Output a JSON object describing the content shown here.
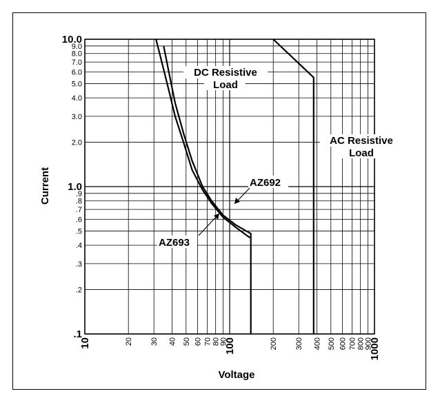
{
  "chart_data": {
    "type": "line",
    "xlabel": "Voltage",
    "ylabel": "Current",
    "xscale": "log",
    "yscale": "log",
    "xlim": [
      10,
      1000
    ],
    "ylim": [
      0.1,
      10
    ],
    "grid": true,
    "x_ticks": [
      {
        "value": 10,
        "label": "10",
        "major": true
      },
      {
        "value": 20,
        "label": "20"
      },
      {
        "value": 30,
        "label": "30"
      },
      {
        "value": 40,
        "label": "40"
      },
      {
        "value": 50,
        "label": "50"
      },
      {
        "value": 60,
        "label": "60"
      },
      {
        "value": 70,
        "label": "70"
      },
      {
        "value": 80,
        "label": "80"
      },
      {
        "value": 90,
        "label": "90"
      },
      {
        "value": 100,
        "label": "100",
        "major": true
      },
      {
        "value": 200,
        "label": "200"
      },
      {
        "value": 300,
        "label": "300"
      },
      {
        "value": 400,
        "label": "400"
      },
      {
        "value": 500,
        "label": "500"
      },
      {
        "value": 600,
        "label": "600"
      },
      {
        "value": 700,
        "label": "700"
      },
      {
        "value": 800,
        "label": "800"
      },
      {
        "value": 900,
        "label": "900"
      },
      {
        "value": 1000,
        "label": "1000",
        "major": true
      }
    ],
    "y_ticks": [
      {
        "value": 0.1,
        "label": ".1",
        "major": true
      },
      {
        "value": 0.2,
        "label": ".2"
      },
      {
        "value": 0.3,
        "label": ".3"
      },
      {
        "value": 0.4,
        "label": ".4"
      },
      {
        "value": 0.5,
        "label": ".5"
      },
      {
        "value": 0.6,
        "label": ".6"
      },
      {
        "value": 0.7,
        "label": ".7"
      },
      {
        "value": 0.8,
        "label": ".8"
      },
      {
        "value": 0.9,
        "label": ".9"
      },
      {
        "value": 1.0,
        "label": "1.0",
        "major": true
      },
      {
        "value": 2.0,
        "label": "2.0"
      },
      {
        "value": 3.0,
        "label": "3.0"
      },
      {
        "value": 4.0,
        "label": "4.0"
      },
      {
        "value": 5.0,
        "label": "5.0"
      },
      {
        "value": 6.0,
        "label": "6.0"
      },
      {
        "value": 7.0,
        "label": "7.0"
      },
      {
        "value": 8.0,
        "label": "8.0"
      },
      {
        "value": 9.0,
        "label": "9.0"
      },
      {
        "value": 10.0,
        "label": "10.0",
        "major": true
      }
    ],
    "series": [
      {
        "name": "AZ692",
        "points": [
          [
            35,
            9.0
          ],
          [
            38,
            6.0
          ],
          [
            42,
            3.7
          ],
          [
            48,
            2.3
          ],
          [
            55,
            1.5
          ],
          [
            65,
            1.0
          ],
          [
            75,
            0.8
          ],
          [
            90,
            0.64
          ],
          [
            110,
            0.55
          ],
          [
            130,
            0.5
          ],
          [
            140,
            0.48
          ],
          [
            140,
            0.1
          ]
        ]
      },
      {
        "name": "AZ693",
        "points": [
          [
            31,
            10.0
          ],
          [
            34,
            7.0
          ],
          [
            38,
            4.5
          ],
          [
            42,
            3.0
          ],
          [
            48,
            2.0
          ],
          [
            55,
            1.3
          ],
          [
            65,
            0.95
          ],
          [
            75,
            0.77
          ],
          [
            90,
            0.62
          ],
          [
            110,
            0.53
          ],
          [
            130,
            0.47
          ],
          [
            138,
            0.45
          ]
        ]
      },
      {
        "name": "AC Resistive Load",
        "points": [
          [
            200,
            10.0
          ],
          [
            380,
            5.5
          ],
          [
            380,
            0.1
          ]
        ]
      }
    ],
    "annotations": [
      {
        "id": "dc",
        "lines": [
          "DC Resistive",
          "Load"
        ]
      },
      {
        "id": "ac",
        "lines": [
          "AC Resistive",
          "Load"
        ]
      },
      {
        "id": "az692",
        "lines": [
          "AZ692"
        ]
      },
      {
        "id": "az693",
        "lines": [
          "AZ693"
        ]
      }
    ]
  }
}
